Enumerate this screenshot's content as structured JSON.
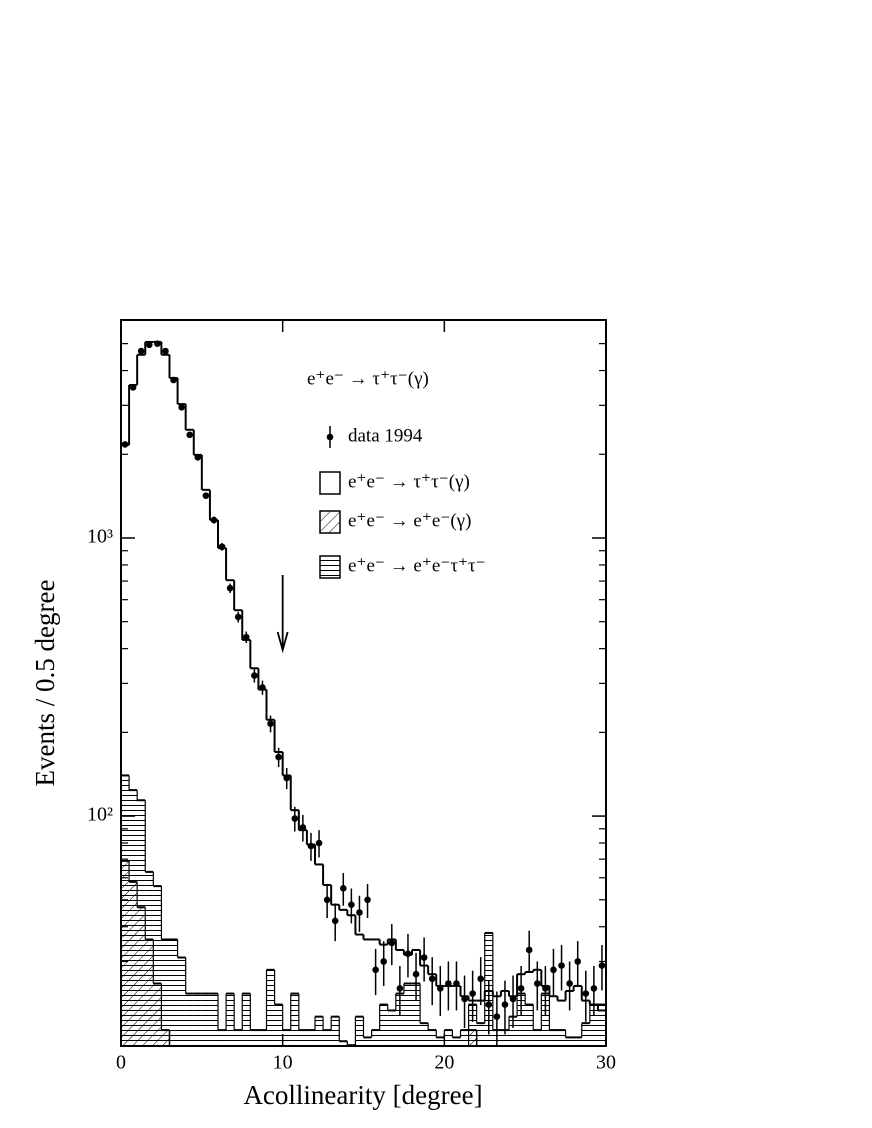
{
  "chart_data": {
    "type": "histogram",
    "title": "e⁺e⁻ → τ⁺τ⁻(γ)",
    "xlabel": "Acollinearity [degree]",
    "ylabel": "Events / 0.5 degree",
    "yscale": "log",
    "xlim": [
      0,
      30
    ],
    "xticks": [
      0,
      10,
      20,
      30
    ],
    "ylim": [
      14.9,
      6080
    ],
    "yticks": [
      {
        "value": 100,
        "label": "10²"
      },
      {
        "value": 1000,
        "label": "10³"
      }
    ],
    "yminorticks": [
      20,
      30,
      40,
      50,
      60,
      70,
      80,
      90,
      200,
      300,
      400,
      500,
      600,
      700,
      800,
      900,
      2000,
      3000,
      4000,
      5000
    ],
    "cut_arrow": 10,
    "bins": [
      0,
      0.5,
      1,
      1.5,
      2,
      2.5,
      3,
      3.5,
      4,
      4.5,
      5,
      5.5,
      6,
      6.5,
      7,
      7.5,
      8,
      8.5,
      9,
      9.5,
      10,
      10.5,
      11,
      11.5,
      12,
      12.5,
      13,
      13.5,
      14,
      14.5,
      15,
      15.5,
      16,
      16.5,
      17,
      17.5,
      18,
      18.5,
      19,
      19.5,
      20,
      20.5,
      21,
      21.5,
      22,
      22.5,
      23,
      23.5,
      24,
      24.5,
      25,
      25.5,
      26,
      26.5,
      27,
      27.5,
      28,
      28.5,
      29,
      29.5,
      30
    ],
    "series": [
      {
        "name": "data 1994",
        "style": "points",
        "color": "#000000",
        "values": [
          2170,
          3480,
          4700,
          4950,
          5000,
          4700,
          3700,
          2950,
          2350,
          1950,
          1420,
          1160,
          930,
          660,
          520,
          440,
          320,
          290,
          215,
          163,
          137,
          98,
          91,
          78,
          80,
          50,
          42,
          55,
          48,
          45,
          50,
          28,
          30,
          35,
          24,
          32,
          27,
          31,
          26,
          24,
          25,
          25,
          22,
          23,
          26,
          21,
          19,
          21,
          22,
          24,
          33,
          25,
          24,
          28,
          29,
          25,
          30,
          23,
          24,
          29
        ],
        "errors": [
          47,
          59,
          69,
          70,
          71,
          69,
          61,
          54,
          48,
          44,
          38,
          34,
          30,
          26,
          23,
          21,
          18,
          17,
          15,
          13,
          12,
          10,
          10,
          9,
          9,
          7,
          6.5,
          7.4,
          6.9,
          6.7,
          7,
          5.3,
          5.5,
          5.9,
          4.9,
          5.7,
          5.2,
          5.6,
          5.1,
          4.9,
          5,
          5,
          4.7,
          4.8,
          5.1,
          4.6,
          4.4,
          4.6,
          4.7,
          4.9,
          5.7,
          5,
          4.9,
          5.3,
          5.4,
          5,
          5.5,
          4.8,
          4.9,
          5.4
        ]
      },
      {
        "name": "e⁺e⁻ → τ⁺τ⁻(γ)",
        "style": "open",
        "color": "#000000",
        "values": [
          2160,
          3550,
          4560,
          5070,
          5070,
          4560,
          3760,
          3030,
          2450,
          1990,
          1490,
          1160,
          920,
          705,
          550,
          430,
          340,
          285,
          222,
          170,
          140,
          105,
          89,
          79,
          67,
          56.5,
          48,
          46,
          44,
          37.5,
          36,
          36,
          34.5,
          36,
          33,
          31.7,
          33,
          29,
          27,
          24.5,
          24.5,
          24.5,
          22.5,
          21.7,
          21.7,
          23.5,
          22.5,
          23.5,
          22.5,
          27,
          27.5,
          28,
          24.5,
          22.5,
          21.7,
          23.5,
          24.5,
          21.7,
          21,
          20
        ]
      },
      {
        "name": "e⁺e⁻ → e⁺e⁻(γ)",
        "style": "hatch-diagonal",
        "color": "#000000",
        "values": [
          69,
          58,
          47,
          36,
          25,
          17,
          null,
          null,
          null,
          null,
          null,
          null,
          null,
          null,
          null,
          null,
          null,
          null,
          null,
          null,
          null,
          null,
          null,
          null,
          null,
          null,
          null,
          null,
          null,
          null,
          null,
          null,
          null,
          null,
          null,
          null,
          null,
          null,
          null,
          null,
          null,
          null,
          null,
          17,
          null,
          null,
          null,
          null,
          null,
          null,
          null,
          null,
          null,
          null,
          null,
          null,
          null,
          null,
          null,
          null
        ]
      },
      {
        "name": "e⁺e⁻ → e⁺e⁻τ⁺τ⁻",
        "style": "hatch-horizontal",
        "color": "#000000",
        "values": [
          140,
          124,
          114,
          63,
          56,
          36,
          36,
          31,
          23,
          23,
          23,
          23,
          17,
          23,
          17,
          23,
          17,
          17,
          28,
          21,
          17,
          23,
          17,
          17,
          19,
          17,
          19,
          15.5,
          15,
          19,
          16,
          17,
          21,
          20,
          23,
          25,
          25,
          18,
          17,
          16,
          17,
          16,
          17,
          21,
          18,
          38,
          17,
          17,
          19,
          23,
          21,
          17,
          23,
          17,
          17,
          16,
          16,
          18,
          21,
          21
        ]
      }
    ]
  }
}
